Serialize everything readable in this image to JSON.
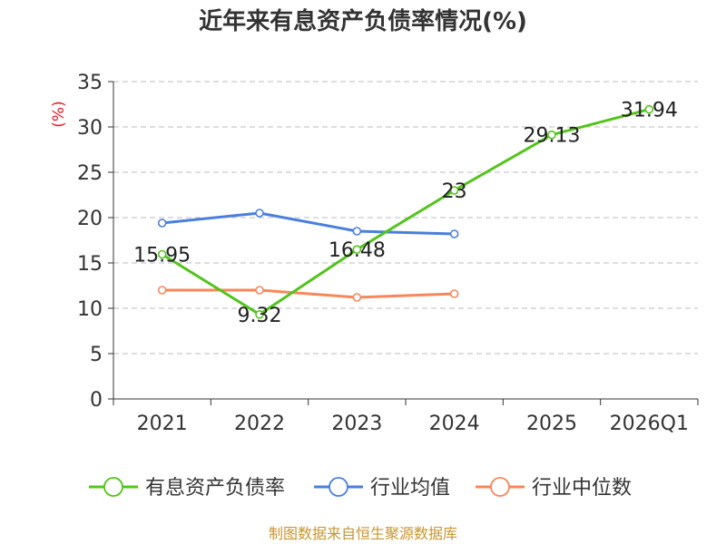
{
  "chart_data": {
    "type": "line",
    "title": "近年来有息资产负债率情况(%)",
    "ylabel": "(%)",
    "categories": [
      "2021",
      "2022",
      "2023",
      "2024",
      "2025",
      "2026Q1"
    ],
    "ylim": [
      0,
      35
    ],
    "yticks": [
      0,
      5,
      10,
      15,
      20,
      25,
      30,
      35
    ],
    "grid": true,
    "legend_position": "bottom",
    "series": [
      {
        "name": "有息资产负债率",
        "color": "#52c41a",
        "values": [
          15.95,
          9.32,
          16.48,
          23,
          29.13,
          31.94
        ],
        "labels": [
          "15.95",
          "9.32",
          "16.48",
          "23",
          "29.13",
          "31.94"
        ]
      },
      {
        "name": "行业均值",
        "color": "#4a7fdc",
        "values": [
          19.4,
          20.5,
          18.5,
          18.2,
          null,
          null
        ]
      },
      {
        "name": "行业中位数",
        "color": "#f7875a",
        "values": [
          12.0,
          12.0,
          11.2,
          11.6,
          null,
          null
        ]
      }
    ],
    "source": "制图数据来自恒生聚源数据库"
  }
}
